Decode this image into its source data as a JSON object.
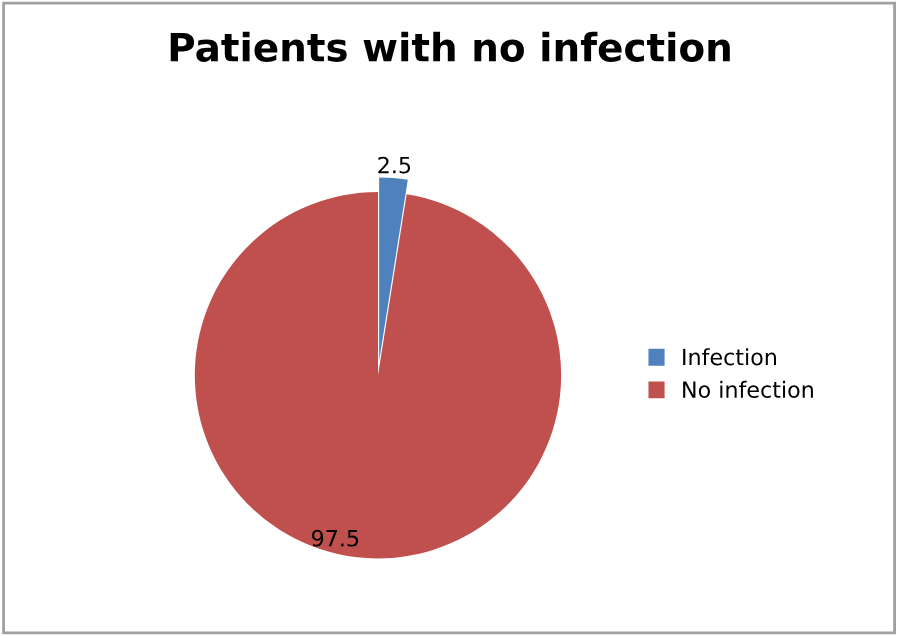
{
  "chart_data": {
    "type": "pie",
    "title": "Patients with no infection",
    "categories": [
      "Infection",
      "No infection"
    ],
    "values": [
      2.5,
      97.5
    ],
    "colors": [
      "#4f81bd",
      "#c0504d"
    ],
    "data_labels": true,
    "legend": "right"
  }
}
